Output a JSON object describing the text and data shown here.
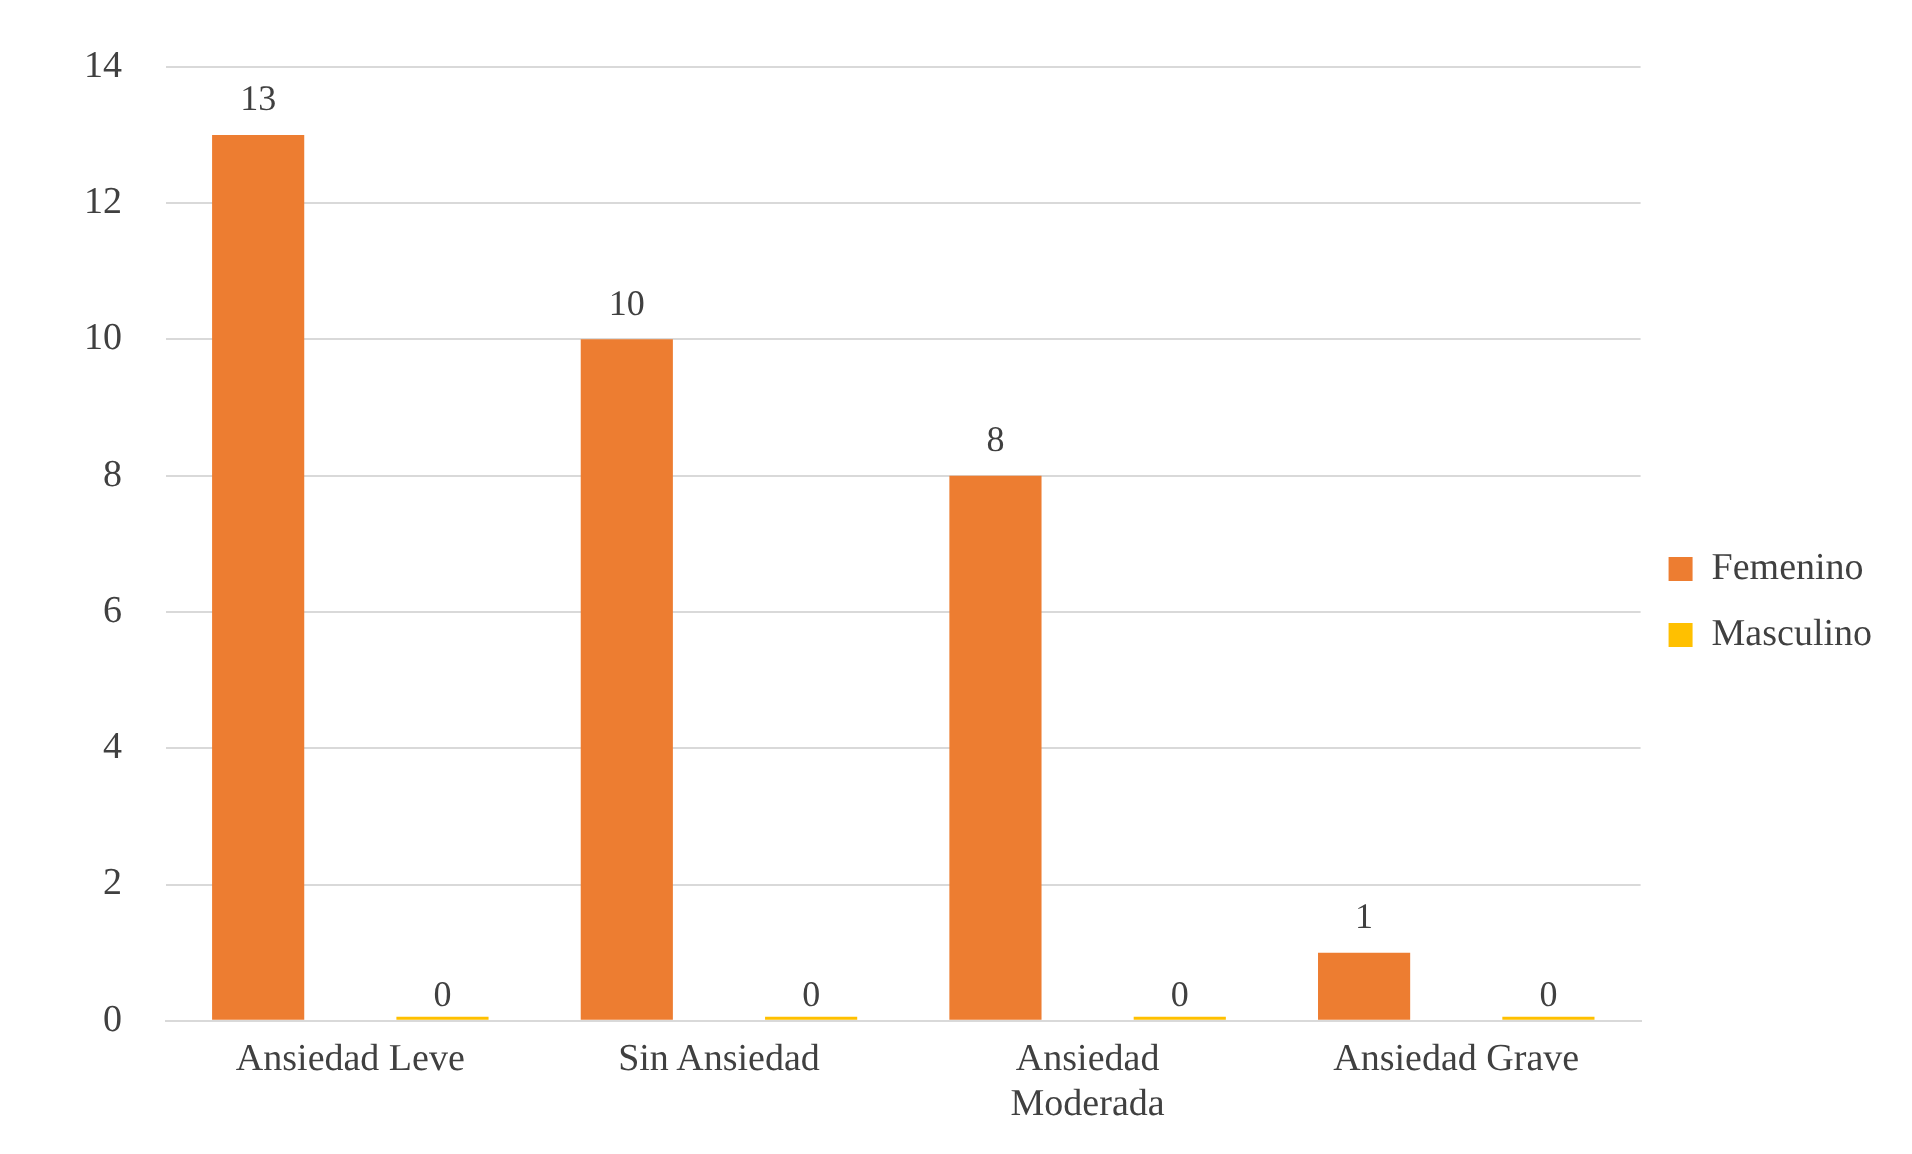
{
  "chart_data": {
    "type": "bar",
    "categories": [
      "Ansiedad Leve",
      "Sin Ansiedad",
      "Ansiedad Moderada",
      "Ansiedad Grave"
    ],
    "series": [
      {
        "name": "Femenino",
        "color": "#ed7d31",
        "values": [
          13,
          10,
          8,
          1
        ]
      },
      {
        "name": "Masculino",
        "color": "#ffc000",
        "values": [
          0,
          0,
          0,
          0
        ]
      }
    ],
    "ylim": [
      0,
      14
    ],
    "yticks": [
      0,
      2,
      4,
      6,
      8,
      10,
      12,
      14
    ],
    "grid": "y",
    "legend": "right",
    "data_labels": true
  }
}
